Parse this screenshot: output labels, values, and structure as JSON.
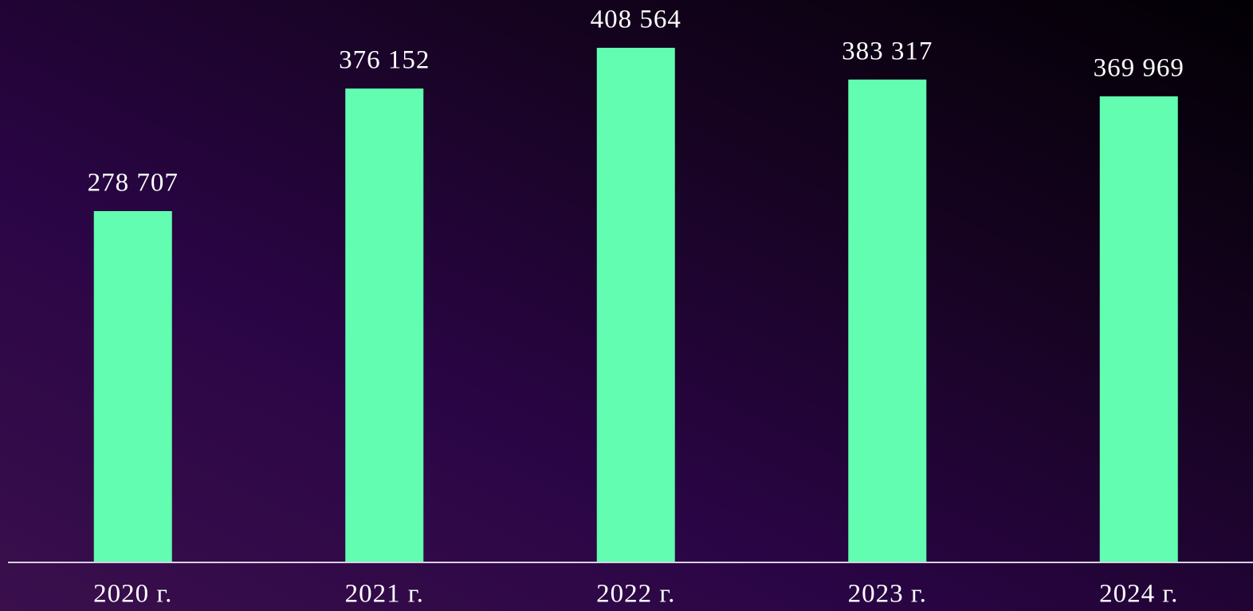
{
  "chart_data": {
    "type": "bar",
    "categories": [
      "2020 г.",
      "2021 г.",
      "2022 г.",
      "2023 г.",
      "2024 г."
    ],
    "values": [
      278707,
      376152,
      408564,
      383317,
      369969
    ],
    "value_labels": [
      "278 707",
      "376 152",
      "408 564",
      "383 317",
      "369 969"
    ],
    "color": "#62fdb0"
  }
}
